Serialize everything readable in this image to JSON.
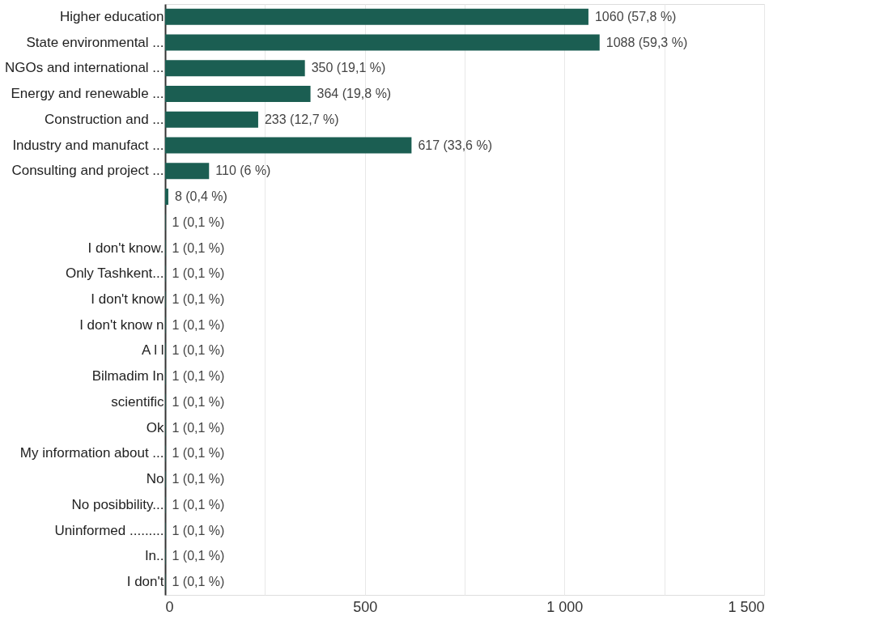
{
  "chart_data": {
    "type": "bar",
    "orientation": "horizontal",
    "categories": [
      "Higher education",
      "State environmental ...",
      "NGOs and international ...",
      "Energy and renewable ...",
      "Construction and ...",
      "Industry and manufact ...",
      "Consulting and project ...",
      null,
      null,
      "I don't know.",
      "Only Tashkent...",
      "I don't know",
      "I don't know n",
      "A l l",
      "Bilmadim In",
      "scientific",
      "Ok",
      "My information about ...",
      "No",
      "No posibbility...",
      "Uninformed .........",
      "In..",
      "I don't"
    ],
    "values": [
      1060,
      1088,
      350,
      364,
      233,
      617,
      110,
      8,
      1,
      1,
      1,
      1,
      1,
      1,
      1,
      1,
      1,
      1,
      1,
      1,
      1,
      1,
      1
    ],
    "value_labels": [
      "1060 (57,8 %)",
      "1088 (59,3 %)",
      "350 (19,1 %)",
      "364 (19,8 %)",
      "233 (12,7 %)",
      "617 (33,6 %)",
      "110 (6 %)",
      "8 (0,4 %)",
      "1 (0,1 %)",
      "1 (0,1 %)",
      "1 (0,1 %)",
      "1 (0,1 %)",
      "1 (0,1 %)",
      "1 (0,1 %)",
      "1 (0,1 %)",
      "1 (0,1 %)",
      "1 (0,1 %)",
      "1 (0,1 %)",
      "1 (0,1 %)",
      "1 (0,1 %)",
      "1 (0,1 %)",
      "1 (0,1 %)",
      "1 (0,1 %)"
    ],
    "color": "#1b5e52",
    "xlim": [
      0,
      1500
    ],
    "xticks": [
      0,
      {
        "value": 250,
        "label": null
      },
      500,
      {
        "value": 750,
        "label": null
      },
      {
        "value": 1000,
        "label": "1 000"
      },
      {
        "value": 1250,
        "label": null
      },
      {
        "value": 1500,
        "label": "1 500"
      }
    ],
    "grid": "x"
  }
}
